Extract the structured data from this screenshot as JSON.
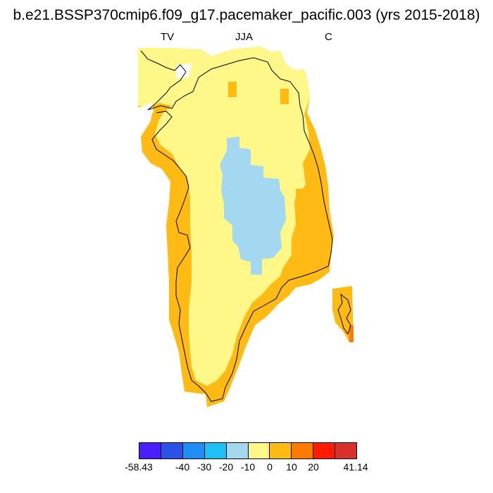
{
  "title": "b.e21.BSSP370cmip6.f09_g17.pacemaker_pacific.003 (yrs 2015-2018)",
  "subtitle_left": "TV",
  "subtitle_center": "JJA",
  "subtitle_right": "C",
  "colors": {
    "lt_-40": "#4a1dff",
    "-40_-30": "#2b52e6",
    "-30_-20": "#1f8ff5",
    "-20_-10": "#1dc0f7",
    "-10_0": "#a4d8f0",
    "0_10": "#fff787",
    "10_20": "#ffbb13",
    "20_30": "#ff7a00",
    "30_40": "#ff1a00",
    "gt_40": "#d9302b"
  },
  "colorbar": {
    "min_label": "-58.43",
    "max_label": "41.14",
    "labels": [
      "-40",
      "-30",
      "-20",
      "-10",
      "0",
      "10",
      "20"
    ]
  },
  "map_regions": {
    "interior_ice_sheet": "0_10",
    "central_high_plateau": "-10_0",
    "coastal_margin": "10_20",
    "southeast_tip": "20_30"
  }
}
